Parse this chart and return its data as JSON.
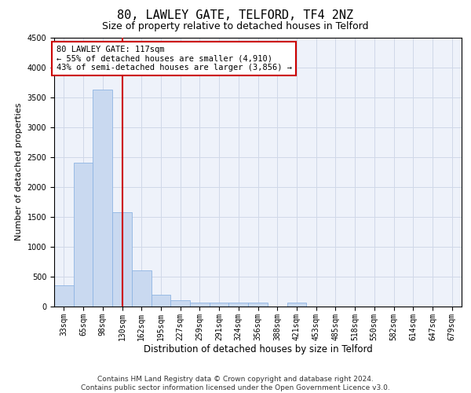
{
  "title": "80, LAWLEY GATE, TELFORD, TF4 2NZ",
  "subtitle": "Size of property relative to detached houses in Telford",
  "xlabel": "Distribution of detached houses by size in Telford",
  "ylabel": "Number of detached properties",
  "categories": [
    "33sqm",
    "65sqm",
    "98sqm",
    "130sqm",
    "162sqm",
    "195sqm",
    "227sqm",
    "259sqm",
    "291sqm",
    "324sqm",
    "356sqm",
    "388sqm",
    "421sqm",
    "453sqm",
    "485sqm",
    "518sqm",
    "550sqm",
    "582sqm",
    "614sqm",
    "647sqm",
    "679sqm"
  ],
  "values": [
    350,
    2400,
    3620,
    1580,
    600,
    200,
    100,
    70,
    60,
    60,
    60,
    0,
    60,
    0,
    0,
    0,
    0,
    0,
    0,
    0,
    0
  ],
  "bar_color": "#c9d9f0",
  "bar_edge_color": "#8eb4e3",
  "vline_x": 3,
  "vline_color": "#cc0000",
  "vline_label": "80 LAWLEY GATE: 117sqm",
  "annotation_line1": "← 55% of detached houses are smaller (4,910)",
  "annotation_line2": "43% of semi-detached houses are larger (3,856) →",
  "annotation_box_color": "#ffffff",
  "annotation_box_edge": "#cc0000",
  "ylim": [
    0,
    4500
  ],
  "yticks": [
    0,
    500,
    1000,
    1500,
    2000,
    2500,
    3000,
    3500,
    4000,
    4500
  ],
  "grid_color": "#d0d8e8",
  "background_color": "#eef2fa",
  "footer": "Contains HM Land Registry data © Crown copyright and database right 2024.\nContains public sector information licensed under the Open Government Licence v3.0.",
  "title_fontsize": 11,
  "subtitle_fontsize": 9,
  "xlabel_fontsize": 8.5,
  "ylabel_fontsize": 8,
  "tick_fontsize": 7,
  "annotation_fontsize": 7.5,
  "footer_fontsize": 6.5
}
